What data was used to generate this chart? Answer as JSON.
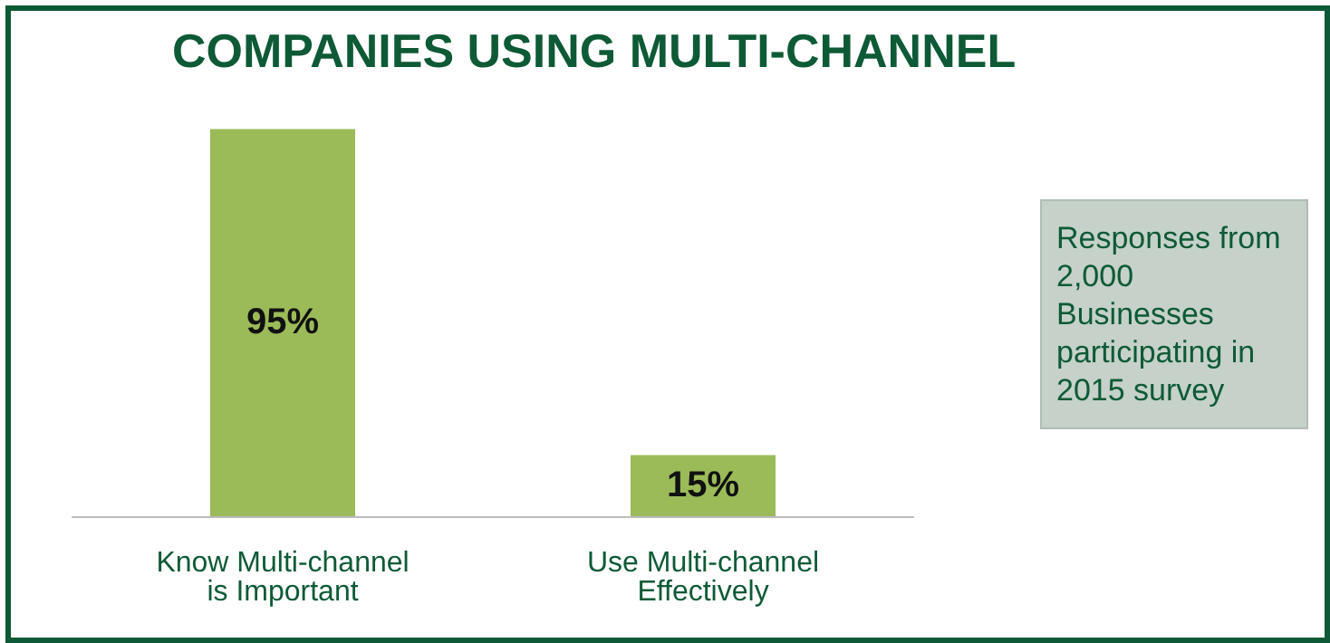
{
  "chart_data": {
    "type": "bar",
    "title": "COMPANIES USING MULTI-CHANNEL",
    "categories": [
      "Know Multi-channel\nis Important",
      "Use Multi-channel\nEffectively"
    ],
    "values": [
      95,
      15
    ],
    "value_labels": [
      "95%",
      "15%"
    ],
    "color": "#9bbb59",
    "annotations": [
      "Responses from 2,000 Businesses participating in 2015 survey"
    ]
  }
}
